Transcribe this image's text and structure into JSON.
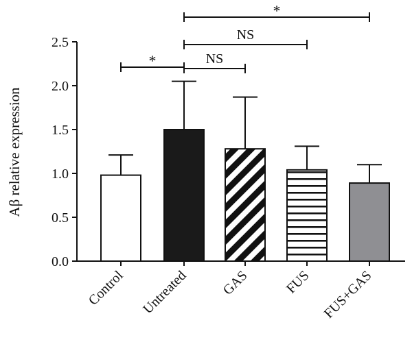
{
  "chart_data": {
    "type": "bar",
    "ylabel": "Aβ relative expression",
    "xlabel": "",
    "title": "",
    "ylim": [
      0,
      2.5
    ],
    "yticks": [
      0.0,
      0.5,
      1.0,
      1.5,
      2.0,
      2.5
    ],
    "ytick_labels": [
      "0.0",
      "0.5",
      "1.0",
      "1.5",
      "2.0",
      "2.5"
    ],
    "categories": [
      "Control",
      "Untreated",
      "GAS",
      "FUS",
      "FUS+GAS"
    ],
    "values": [
      0.98,
      1.5,
      1.28,
      1.04,
      0.89
    ],
    "error_upper": [
      0.23,
      0.55,
      0.59,
      0.27,
      0.21
    ],
    "fills": [
      "white",
      "black",
      "diagonal-stripes",
      "horizontal-stripes",
      "gray"
    ],
    "colors": {
      "gray": "#8f8f93",
      "black": "#1a1a1a"
    },
    "significance": [
      {
        "from": 0,
        "to": 1,
        "label": "*"
      },
      {
        "from": 1,
        "to": 2,
        "label": "NS"
      },
      {
        "from": 1,
        "to": 3,
        "label": "NS"
      },
      {
        "from": 1,
        "to": 4,
        "label": "*"
      }
    ]
  }
}
